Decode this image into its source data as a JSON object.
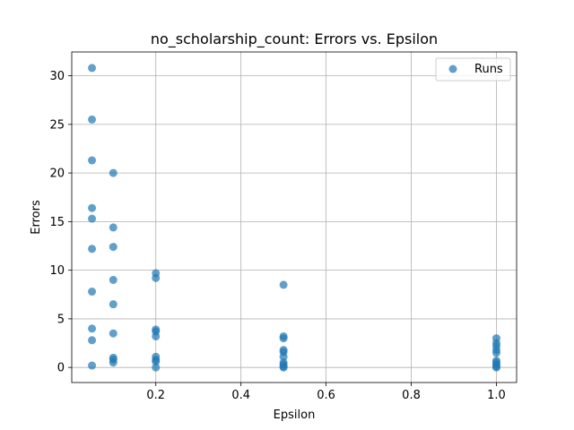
{
  "chart_data": {
    "type": "scatter",
    "title": "no_scholarship_count: Errors vs. Epsilon",
    "xlabel": "Epsilon",
    "ylabel": "Errors",
    "xlim": [
      0.0025,
      1.0475
    ],
    "ylim": [
      -1.55,
      32.45
    ],
    "xticks": [
      0.2,
      0.4,
      0.6,
      0.8,
      1.0
    ],
    "xtick_labels": [
      "0.2",
      "0.4",
      "0.6",
      "0.8",
      "1.0"
    ],
    "yticks": [
      0,
      5,
      10,
      15,
      20,
      25,
      30
    ],
    "ytick_labels": [
      "0",
      "5",
      "10",
      "15",
      "20",
      "25",
      "30"
    ],
    "grid": true,
    "legend_position": "top-right",
    "series": [
      {
        "name": "Runs",
        "color": "#1f77b4",
        "alpha": 0.7,
        "marker": "circle",
        "points": [
          [
            0.05,
            30.8
          ],
          [
            0.05,
            25.5
          ],
          [
            0.05,
            21.3
          ],
          [
            0.05,
            16.4
          ],
          [
            0.05,
            15.3
          ],
          [
            0.05,
            12.2
          ],
          [
            0.05,
            7.8
          ],
          [
            0.05,
            4.0
          ],
          [
            0.05,
            2.8
          ],
          [
            0.05,
            0.2
          ],
          [
            0.1,
            20.0
          ],
          [
            0.1,
            14.4
          ],
          [
            0.1,
            12.4
          ],
          [
            0.1,
            9.0
          ],
          [
            0.1,
            6.5
          ],
          [
            0.1,
            3.5
          ],
          [
            0.1,
            1.0
          ],
          [
            0.1,
            0.8
          ],
          [
            0.1,
            0.5
          ],
          [
            0.2,
            9.7
          ],
          [
            0.2,
            9.2
          ],
          [
            0.2,
            3.9
          ],
          [
            0.2,
            3.7
          ],
          [
            0.2,
            3.2
          ],
          [
            0.2,
            1.1
          ],
          [
            0.2,
            0.8
          ],
          [
            0.2,
            0.6
          ],
          [
            0.2,
            0.0
          ],
          [
            0.5,
            8.5
          ],
          [
            0.5,
            3.2
          ],
          [
            0.5,
            3.0
          ],
          [
            0.5,
            1.8
          ],
          [
            0.5,
            1.6
          ],
          [
            0.5,
            1.1
          ],
          [
            0.5,
            0.5
          ],
          [
            0.5,
            0.3
          ],
          [
            0.5,
            0.1
          ],
          [
            0.5,
            0.0
          ],
          [
            1.0,
            3.0
          ],
          [
            1.0,
            2.5
          ],
          [
            1.0,
            2.2
          ],
          [
            1.0,
            1.8
          ],
          [
            1.0,
            1.5
          ],
          [
            1.0,
            0.7
          ],
          [
            1.0,
            0.5
          ],
          [
            1.0,
            0.3
          ],
          [
            1.0,
            0.1
          ],
          [
            1.0,
            0.0
          ]
        ]
      }
    ]
  }
}
